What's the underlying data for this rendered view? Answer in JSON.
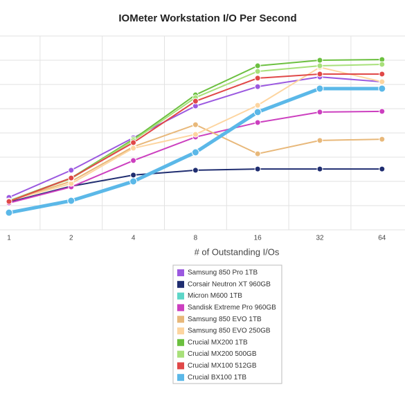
{
  "chart_data": {
    "type": "line",
    "title": "IOMeter Workstation I/O Per Second",
    "x_label": "# of Outstanding I/Os",
    "categories": [
      "1",
      "2",
      "4",
      "8",
      "16",
      "32",
      "64"
    ],
    "ylim": [
      0,
      8
    ],
    "grid": true,
    "series": [
      {
        "name": "Samsung 850 Pro 1TB",
        "color": "#9b59e0",
        "values": [
          1.34,
          2.46,
          3.8,
          5.11,
          5.91,
          6.31,
          6.11
        ]
      },
      {
        "name": "Corsair Neutron XT 960GB",
        "color": "#1f2d70",
        "values": [
          1.14,
          1.8,
          2.26,
          2.46,
          2.51,
          2.51,
          2.51
        ]
      },
      {
        "name": "Micron M600 1TB",
        "color": "#5dd6c8",
        "values": [
          0.71,
          1.2,
          2.0,
          3.2,
          4.86,
          5.83,
          5.83
        ]
      },
      {
        "name": "Sandisk Extreme Pro 960GB",
        "color": "#cc3fbf",
        "values": [
          1.11,
          1.77,
          2.86,
          3.83,
          4.43,
          4.86,
          4.89
        ]
      },
      {
        "name": "Samsung 850 EVO 1TB",
        "color": "#e8b87a",
        "values": [
          1.2,
          2.0,
          3.43,
          4.34,
          3.14,
          3.69,
          3.74
        ]
      },
      {
        "name": "Samsung 850 EVO 250GB",
        "color": "#fdd5a0",
        "values": [
          1.2,
          1.91,
          3.37,
          3.94,
          5.14,
          6.71,
          6.11
        ]
      },
      {
        "name": "Crucial MX200 1TB",
        "color": "#6cc040",
        "values": [
          1.2,
          2.14,
          3.74,
          5.57,
          6.77,
          7.0,
          7.03
        ]
      },
      {
        "name": "Crucial MX200 500GB",
        "color": "#a8e07a",
        "values": [
          1.2,
          2.11,
          3.69,
          5.46,
          6.54,
          6.77,
          6.83
        ]
      },
      {
        "name": "Crucial MX100 512GB",
        "color": "#e04848",
        "values": [
          1.17,
          2.14,
          3.6,
          5.31,
          6.26,
          6.43,
          6.43
        ]
      },
      {
        "name": "Crucial BX100 1TB",
        "color": "#5bb8e8",
        "values": [
          0.71,
          1.2,
          2.0,
          3.2,
          4.86,
          5.83,
          5.83
        ]
      }
    ]
  }
}
